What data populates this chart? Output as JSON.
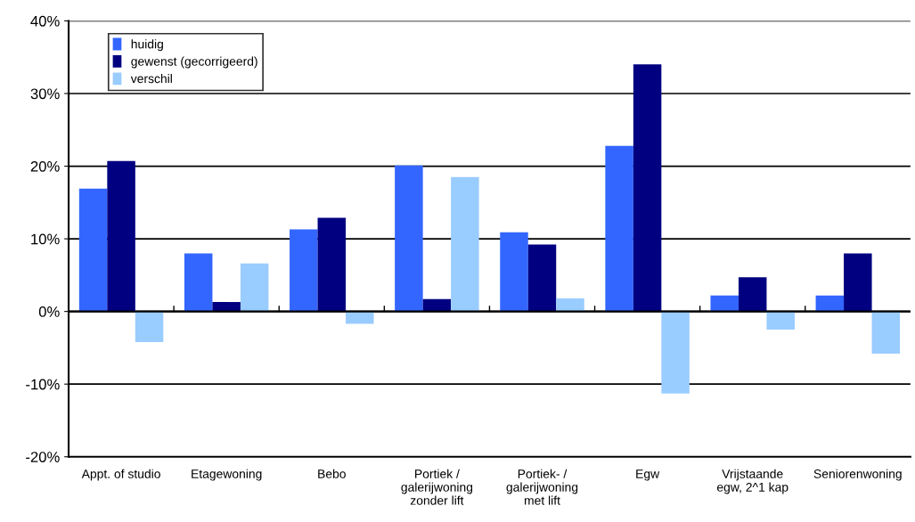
{
  "chart_data": {
    "type": "bar",
    "categories": [
      "Appt. of studio",
      "Etagewoning",
      "Bebo",
      "Portiek /\ngalerijwoning\nzonder lift",
      "Portiek- /\ngalerijwoning\nmet lift",
      "Egw",
      "Vrijstaande\negw, 2^1 kap",
      "Seniorenwoning"
    ],
    "series": [
      {
        "name": "huidig",
        "color": "#3366ff",
        "values": [
          16.9,
          8.0,
          11.3,
          20.1,
          10.9,
          22.8,
          2.2,
          2.2
        ]
      },
      {
        "name": "gewenst (gecorrigeerd)",
        "color": "#000080",
        "values": [
          20.7,
          1.3,
          12.9,
          1.7,
          9.2,
          34.0,
          4.7,
          8.0
        ]
      },
      {
        "name": "verschil",
        "color": "#99ccff",
        "values": [
          -4.2,
          6.6,
          -1.7,
          18.5,
          1.8,
          -11.3,
          -2.5,
          -5.8
        ]
      }
    ],
    "ylim": [
      -20,
      40
    ],
    "yticks": [
      {
        "value": -20,
        "label": "-20%"
      },
      {
        "value": -10,
        "label": "-10%"
      },
      {
        "value": 0,
        "label": "0%"
      },
      {
        "value": 10,
        "label": "10%"
      },
      {
        "value": 20,
        "label": "20%"
      },
      {
        "value": 30,
        "label": "30%"
      },
      {
        "value": 40,
        "label": "40%"
      }
    ],
    "grid": "y",
    "legend": "top left"
  }
}
